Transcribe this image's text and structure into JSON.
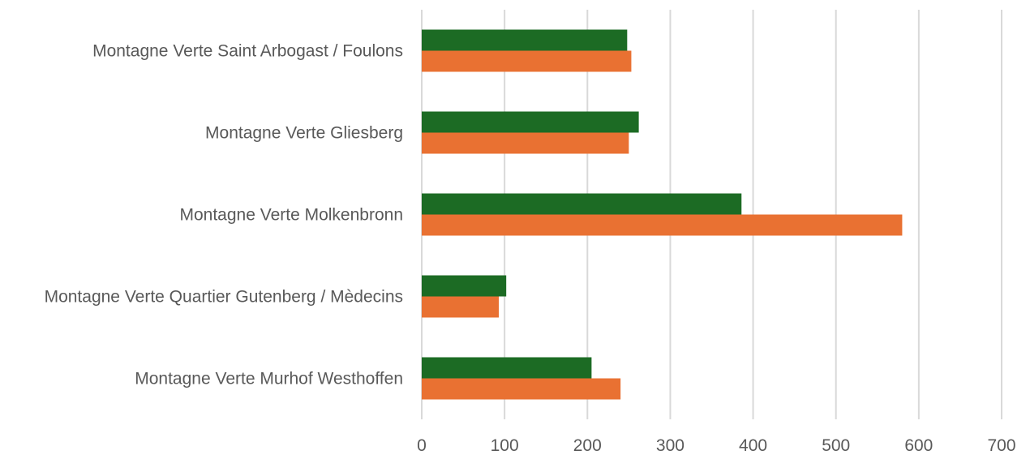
{
  "chart_data": {
    "type": "bar",
    "orientation": "horizontal",
    "title": "",
    "xlabel": "",
    "ylabel": "",
    "categories": [
      "Montagne Verte Saint Arbogast / Foulons",
      "Montagne Verte Gliesberg",
      "Montagne Verte Molkenbronn",
      "Montagne Verte Quartier Gutenberg / Mèdecins",
      "Montagne Verte Murhof Westhoffen"
    ],
    "series": [
      {
        "color": "#1c6b24",
        "values": [
          248,
          262,
          386,
          102,
          205
        ]
      },
      {
        "color": "#e97132",
        "values": [
          253,
          250,
          580,
          93,
          240
        ]
      }
    ],
    "xlim": [
      0,
      700
    ],
    "xticks": [
      "0",
      "100",
      "200",
      "300",
      "400",
      "500",
      "600",
      "700"
    ],
    "grid": true,
    "legend": "none"
  }
}
